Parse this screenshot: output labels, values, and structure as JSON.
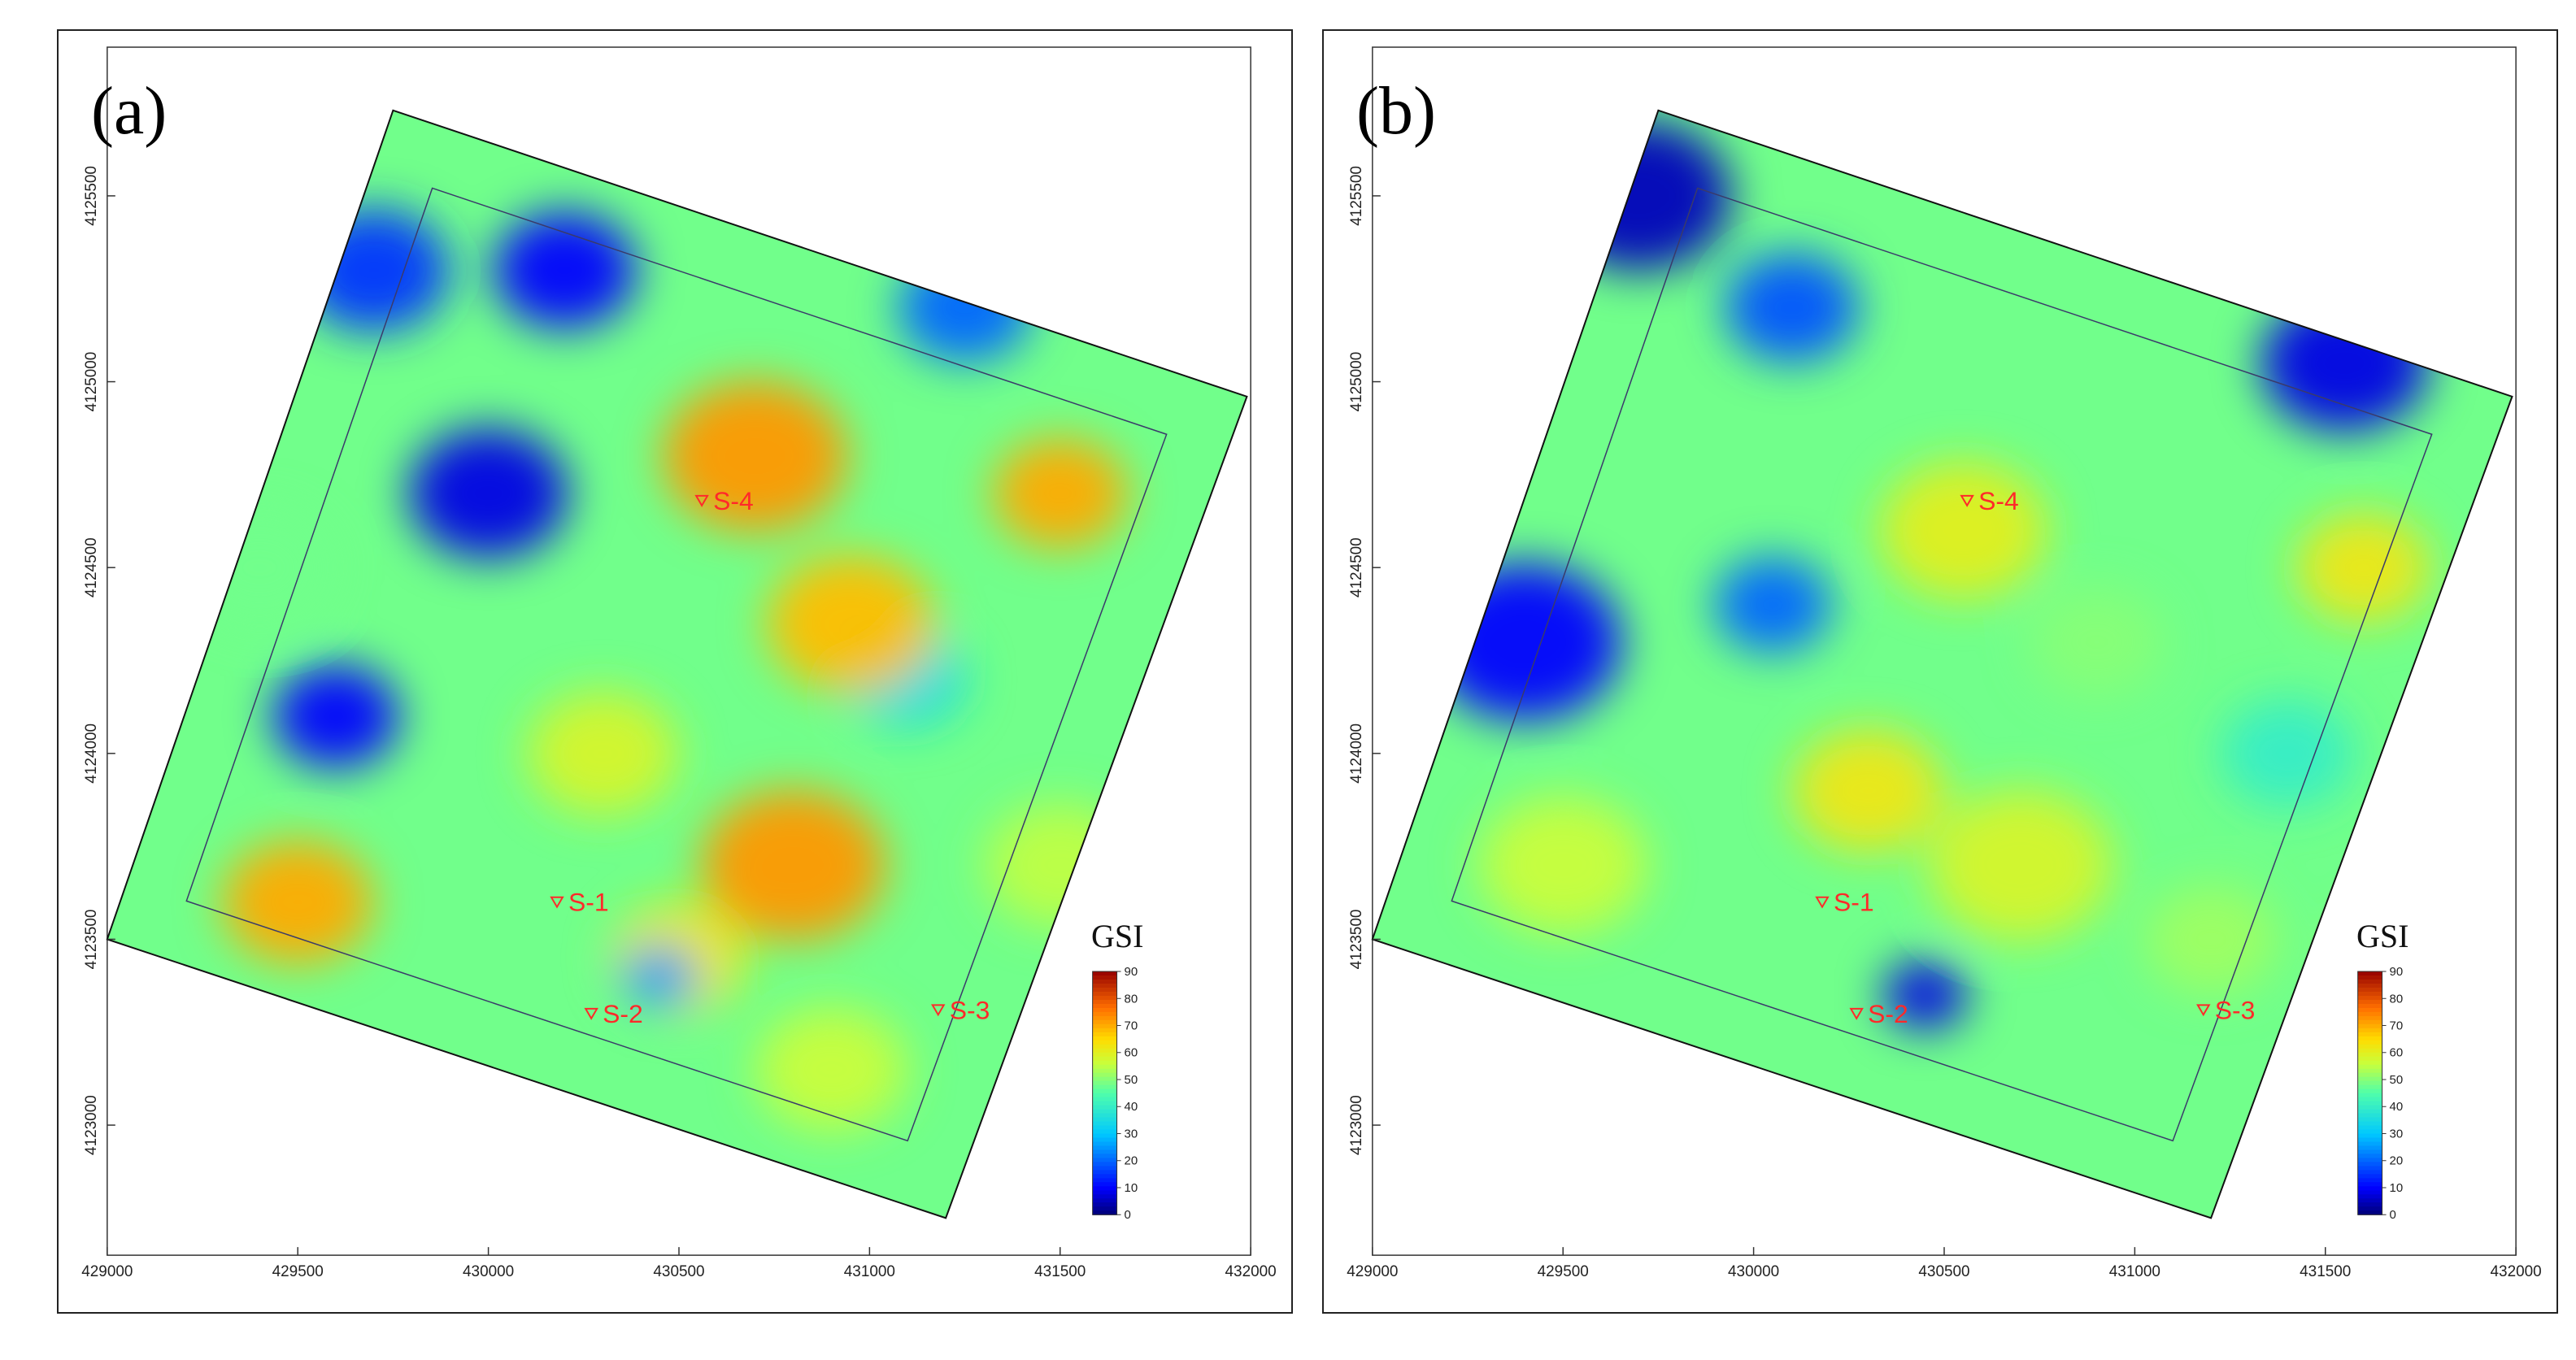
{
  "chart_data": [
    {
      "type": "heatmap",
      "panel_label": "(a)",
      "colorbar_title": "GSI",
      "colorbar_ticks": [
        0,
        10,
        20,
        30,
        40,
        50,
        60,
        70,
        80,
        90
      ],
      "x_ticks": [
        "429000",
        "429500",
        "430000",
        "430500",
        "431000",
        "431500",
        "432000"
      ],
      "y_ticks": [
        "4125500",
        "4125000",
        "4124500",
        "4124000",
        "4123500",
        "4123000"
      ],
      "xlim": [
        429000,
        432000
      ],
      "ylim": [
        4122650,
        4125900
      ],
      "grid_footprint": [
        [
          429750,
          4125730
        ],
        [
          431990,
          4124960
        ],
        [
          431200,
          4122750
        ],
        [
          429000,
          4123500
        ]
      ],
      "stations": [
        {
          "label": "S-1",
          "x": 430180,
          "y": 4123600
        },
        {
          "label": "S-2",
          "x": 430270,
          "y": 4123300
        },
        {
          "label": "S-3",
          "x": 431180,
          "y": 4123310
        },
        {
          "label": "S-4",
          "x": 430560,
          "y": 4124680
        }
      ],
      "blobs": [
        {
          "x": 429700,
          "y": 4125300,
          "r": 180,
          "v": 15
        },
        {
          "x": 430200,
          "y": 4125300,
          "r": 170,
          "v": 10
        },
        {
          "x": 430000,
          "y": 4124700,
          "r": 190,
          "v": 8
        },
        {
          "x": 429600,
          "y": 4124100,
          "r": 150,
          "v": 10
        },
        {
          "x": 431100,
          "y": 4124200,
          "r": 140,
          "v": 35
        },
        {
          "x": 431250,
          "y": 4125200,
          "r": 160,
          "v": 20
        },
        {
          "x": 430700,
          "y": 4124800,
          "r": 220,
          "v": 72
        },
        {
          "x": 430950,
          "y": 4124350,
          "r": 200,
          "v": 68
        },
        {
          "x": 430800,
          "y": 4123700,
          "r": 220,
          "v": 72
        },
        {
          "x": 430500,
          "y": 4123450,
          "r": 160,
          "v": 62
        },
        {
          "x": 429500,
          "y": 4123600,
          "r": 180,
          "v": 70
        },
        {
          "x": 430300,
          "y": 4124000,
          "r": 180,
          "v": 58
        },
        {
          "x": 431500,
          "y": 4124700,
          "r": 160,
          "v": 70
        },
        {
          "x": 431500,
          "y": 4123700,
          "r": 180,
          "v": 55
        },
        {
          "x": 430900,
          "y": 4123150,
          "r": 180,
          "v": 56
        },
        {
          "x": 429400,
          "y": 4124500,
          "r": 170,
          "v": 48
        },
        {
          "x": 430450,
          "y": 4123400,
          "r": 90,
          "v": 25
        }
      ]
    },
    {
      "type": "heatmap",
      "panel_label": "(b)",
      "colorbar_title": "GSI",
      "colorbar_ticks": [
        0,
        10,
        20,
        30,
        40,
        50,
        60,
        70,
        80,
        90
      ],
      "x_ticks": [
        "429000",
        "429500",
        "430000",
        "430500",
        "431000",
        "431500",
        "432000"
      ],
      "y_ticks": [
        "4125500",
        "4125000",
        "4124500",
        "4124000",
        "4123500",
        "4123000"
      ],
      "xlim": [
        429000,
        432000
      ],
      "ylim": [
        4122650,
        4125900
      ],
      "grid_footprint": [
        [
          429750,
          4125730
        ],
        [
          431990,
          4124960
        ],
        [
          431200,
          4122750
        ],
        [
          429000,
          4123500
        ]
      ],
      "stations": [
        {
          "label": "S-1",
          "x": 430180,
          "y": 4123600
        },
        {
          "label": "S-2",
          "x": 430270,
          "y": 4123300
        },
        {
          "label": "S-3",
          "x": 431180,
          "y": 4123310
        },
        {
          "label": "S-4",
          "x": 430560,
          "y": 4124680
        }
      ],
      "blobs": [
        {
          "x": 429700,
          "y": 4125500,
          "r": 220,
          "v": 5
        },
        {
          "x": 429400,
          "y": 4124300,
          "r": 230,
          "v": 10
        },
        {
          "x": 430100,
          "y": 4125200,
          "r": 160,
          "v": 18
        },
        {
          "x": 430050,
          "y": 4124400,
          "r": 140,
          "v": 20
        },
        {
          "x": 431550,
          "y": 4125050,
          "r": 200,
          "v": 8
        },
        {
          "x": 430450,
          "y": 4123350,
          "r": 100,
          "v": 8
        },
        {
          "x": 431400,
          "y": 4124000,
          "r": 160,
          "v": 40
        },
        {
          "x": 430550,
          "y": 4124600,
          "r": 200,
          "v": 60
        },
        {
          "x": 430700,
          "y": 4123700,
          "r": 220,
          "v": 58
        },
        {
          "x": 430300,
          "y": 4123900,
          "r": 180,
          "v": 62
        },
        {
          "x": 429500,
          "y": 4123700,
          "r": 200,
          "v": 56
        },
        {
          "x": 431600,
          "y": 4124500,
          "r": 160,
          "v": 62
        },
        {
          "x": 431200,
          "y": 4123500,
          "r": 160,
          "v": 52
        },
        {
          "x": 430900,
          "y": 4124300,
          "r": 160,
          "v": 50
        },
        {
          "x": 431700,
          "y": 4123450,
          "r": 150,
          "v": 55
        }
      ]
    }
  ]
}
